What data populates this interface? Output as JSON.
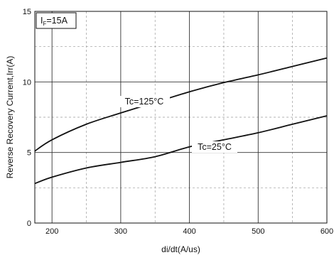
{
  "chart_data": {
    "type": "line",
    "title": "",
    "xlabel": "di/dt(A/us)",
    "ylabel": "Reverse Recovery Current,Irr(A)",
    "xlim": [
      175,
      600
    ],
    "ylim": [
      0,
      15
    ],
    "x_ticks": [
      "200",
      "300",
      "400",
      "500",
      "600"
    ],
    "y_ticks": [
      "0",
      "5",
      "10",
      "15"
    ],
    "x_tick_values": [
      200,
      300,
      400,
      500,
      600
    ],
    "y_tick_values": [
      0,
      5,
      10,
      15
    ],
    "x_minor_tick_values": [
      250,
      350,
      450,
      550
    ],
    "y_minor_tick_values": [
      2.5,
      7.5,
      12.5
    ],
    "grid": true,
    "condition_label": {
      "main": "I",
      "sub": "F",
      "rest": "=15A"
    },
    "series": [
      {
        "name": "Tc=125°C",
        "color": "#111111",
        "x": [
          175,
          200,
          250,
          300,
          350,
          400,
          450,
          500,
          550,
          600
        ],
        "y": [
          5.1,
          5.9,
          7.0,
          7.8,
          8.55,
          9.3,
          9.95,
          10.5,
          11.1,
          11.7
        ]
      },
      {
        "name": "Tc=25°C",
        "color": "#111111",
        "x": [
          175,
          200,
          250,
          300,
          350,
          400,
          450,
          500,
          550,
          600
        ],
        "y": [
          2.8,
          3.25,
          3.9,
          4.3,
          4.7,
          5.4,
          5.9,
          6.4,
          7.0,
          7.6
        ]
      }
    ],
    "annotations": [
      {
        "text": "Tc=125°C",
        "series": 0
      },
      {
        "text": "Tc=25°C",
        "series": 1
      }
    ]
  }
}
